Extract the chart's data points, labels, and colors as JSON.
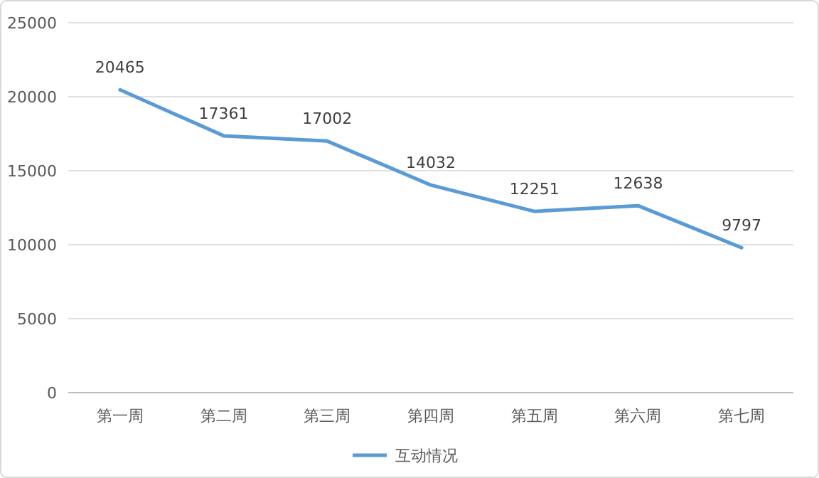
{
  "chart_data": {
    "type": "line",
    "categories": [
      "第一周",
      "第二周",
      "第三周",
      "第四周",
      "第五周",
      "第六周",
      "第七周"
    ],
    "series": [
      {
        "name": "互动情况",
        "color": "#5b9bd5",
        "values": [
          20465,
          17361,
          17002,
          14032,
          12251,
          12638,
          9797
        ]
      }
    ],
    "ylim": [
      0,
      25000
    ],
    "yticks": [
      0,
      5000,
      10000,
      15000,
      20000,
      25000
    ],
    "grid": "y",
    "legend": "bottom",
    "data_labels": true,
    "marker": "none",
    "line_style": "solid"
  }
}
